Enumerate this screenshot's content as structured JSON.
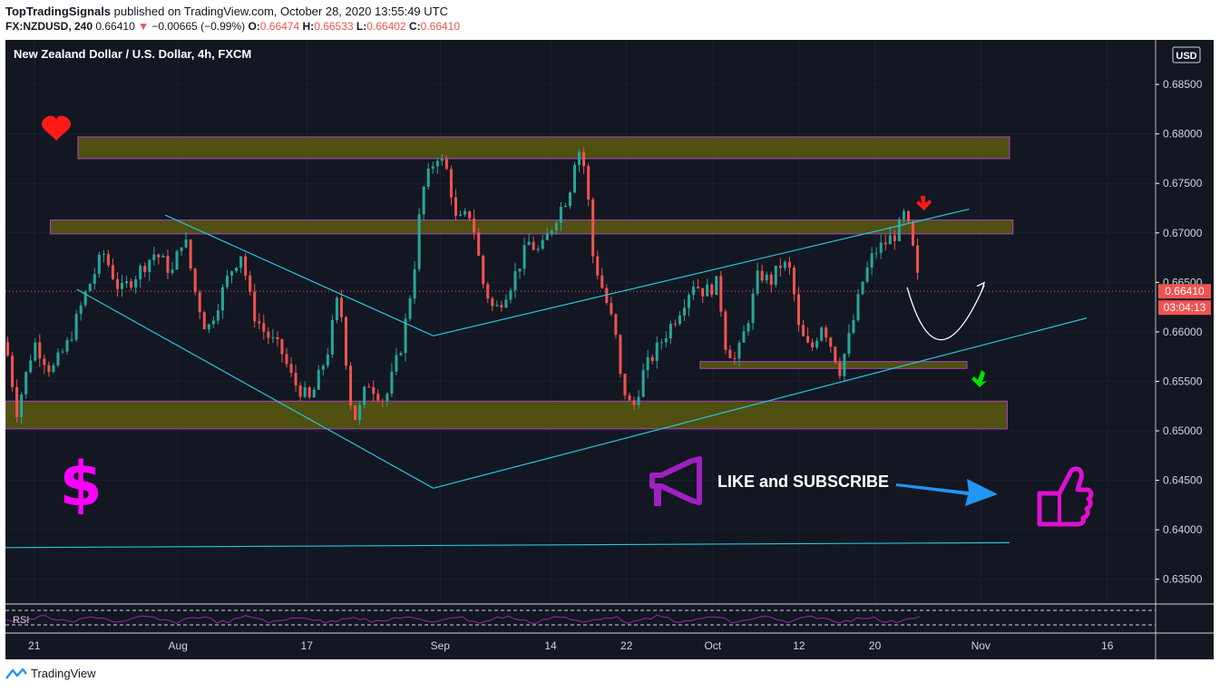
{
  "header": {
    "author": "TopTradingSignals",
    "published_text": "published on TradingView.com, October 28, 2020 13:55:49 UTC",
    "symbol": "FX:NZDUSD, 240",
    "last": "0.66410",
    "change_arrow": "▼",
    "change": "−0.00665 (−0.99%)",
    "o_label": "O:",
    "o_value": "0.66474",
    "h_label": "H:",
    "h_value": "0.66533",
    "l_label": "L:",
    "l_value": "0.66402",
    "c_label": "C:",
    "c_value": "0.66410"
  },
  "chart_data": {
    "type": "candlestick",
    "title": "New Zealand Dollar / U.S. Dollar, 4h, FXCM",
    "currency": "USD",
    "ylim": [
      0.6325,
      0.6895
    ],
    "y_ticks": [
      0.685,
      0.68,
      0.675,
      0.67,
      0.665,
      0.66,
      0.655,
      0.65,
      0.645,
      0.64,
      0.635
    ],
    "y_tick_labels": [
      "0.68500",
      "0.68000",
      "0.67500",
      "0.67000",
      "0.66500",
      "0.66000",
      "0.65500",
      "0.65000",
      "0.64500",
      "0.64000",
      "0.63500"
    ],
    "x_ticks": [
      {
        "label": "21",
        "t": 0.025
      },
      {
        "label": "Aug",
        "t": 0.15
      },
      {
        "label": "17",
        "t": 0.262
      },
      {
        "label": "Sep",
        "t": 0.378
      },
      {
        "label": "14",
        "t": 0.474
      },
      {
        "label": "22",
        "t": 0.54
      },
      {
        "label": "Oct",
        "t": 0.615
      },
      {
        "label": "12",
        "t": 0.69
      },
      {
        "label": "20",
        "t": 0.756
      },
      {
        "label": "Nov",
        "t": 0.848
      },
      {
        "label": "16",
        "t": 0.958
      }
    ],
    "last_price": {
      "value": 0.6641,
      "label": "0.66410",
      "countdown": "03:04:13",
      "color": "#ef5350"
    },
    "price_path": [
      [
        0.0,
        0.659
      ],
      [
        0.01,
        0.652
      ],
      [
        0.025,
        0.659
      ],
      [
        0.04,
        0.656
      ],
      [
        0.055,
        0.659
      ],
      [
        0.07,
        0.664
      ],
      [
        0.085,
        0.668
      ],
      [
        0.1,
        0.664
      ],
      [
        0.115,
        0.666
      ],
      [
        0.13,
        0.668
      ],
      [
        0.145,
        0.666
      ],
      [
        0.155,
        0.67
      ],
      [
        0.165,
        0.664
      ],
      [
        0.175,
        0.66
      ],
      [
        0.185,
        0.663
      ],
      [
        0.195,
        0.666
      ],
      [
        0.205,
        0.668
      ],
      [
        0.215,
        0.662
      ],
      [
        0.225,
        0.66
      ],
      [
        0.24,
        0.658
      ],
      [
        0.25,
        0.655
      ],
      [
        0.265,
        0.653
      ],
      [
        0.28,
        0.658
      ],
      [
        0.29,
        0.664
      ],
      [
        0.3,
        0.653
      ],
      [
        0.305,
        0.651
      ],
      [
        0.315,
        0.655
      ],
      [
        0.33,
        0.653
      ],
      [
        0.345,
        0.659
      ],
      [
        0.355,
        0.666
      ],
      [
        0.362,
        0.674
      ],
      [
        0.375,
        0.678
      ],
      [
        0.385,
        0.676
      ],
      [
        0.392,
        0.671
      ],
      [
        0.405,
        0.672
      ],
      [
        0.415,
        0.665
      ],
      [
        0.425,
        0.662
      ],
      [
        0.44,
        0.665
      ],
      [
        0.455,
        0.669
      ],
      [
        0.465,
        0.668
      ],
      [
        0.48,
        0.672
      ],
      [
        0.49,
        0.674
      ],
      [
        0.497,
        0.679
      ],
      [
        0.505,
        0.676
      ],
      [
        0.51,
        0.668
      ],
      [
        0.52,
        0.664
      ],
      [
        0.53,
        0.66
      ],
      [
        0.535,
        0.655
      ],
      [
        0.545,
        0.652
      ],
      [
        0.555,
        0.656
      ],
      [
        0.57,
        0.659
      ],
      [
        0.585,
        0.662
      ],
      [
        0.598,
        0.665
      ],
      [
        0.608,
        0.664
      ],
      [
        0.62,
        0.665
      ],
      [
        0.625,
        0.659
      ],
      [
        0.635,
        0.657
      ],
      [
        0.645,
        0.661
      ],
      [
        0.655,
        0.666
      ],
      [
        0.665,
        0.665
      ],
      [
        0.675,
        0.667
      ],
      [
        0.683,
        0.666
      ],
      [
        0.69,
        0.66
      ],
      [
        0.7,
        0.658
      ],
      [
        0.71,
        0.661
      ],
      [
        0.72,
        0.658
      ],
      [
        0.725,
        0.656
      ],
      [
        0.735,
        0.66
      ],
      [
        0.745,
        0.665
      ],
      [
        0.755,
        0.668
      ],
      [
        0.765,
        0.669
      ],
      [
        0.775,
        0.67
      ],
      [
        0.782,
        0.672
      ],
      [
        0.788,
        0.669
      ],
      [
        0.795,
        0.664
      ]
    ],
    "zones": [
      {
        "t1": 0.063,
        "t2": 0.873,
        "lo": 0.6775,
        "hi": 0.6797
      },
      {
        "t1": 0.039,
        "t2": 0.876,
        "lo": 0.6699,
        "hi": 0.6713
      },
      {
        "t1": 0.604,
        "t2": 0.836,
        "lo": 0.6563,
        "hi": 0.657
      },
      {
        "t1": 0.0,
        "t2": 0.871,
        "lo": 0.6502,
        "hi": 0.653
      }
    ],
    "zone_color": "#5a5a0f",
    "zone_border": "#b040c0",
    "lines": [
      {
        "t1": 0.139,
        "p1": 0.6718,
        "t2": 0.372,
        "p2": 0.6596
      },
      {
        "t1": 0.372,
        "p1": 0.6596,
        "t2": 0.838,
        "p2": 0.6724
      },
      {
        "t1": 0.062,
        "p1": 0.6643,
        "t2": 0.372,
        "p2": 0.6442
      },
      {
        "t1": 0.372,
        "p1": 0.6442,
        "t2": 0.94,
        "p2": 0.6614
      },
      {
        "t1": 0.0,
        "p1": 0.6382,
        "t2": 0.873,
        "p2": 0.6387
      }
    ],
    "trend_color": "#26c6da",
    "projection": {
      "start": [
        0.784,
        0.6645
      ],
      "control": [
        0.81,
        0.6538
      ],
      "end": [
        0.851,
        0.6647
      ],
      "color": "#ffffff"
    },
    "rsi": {
      "label": "RSI",
      "upper": 70,
      "lower": 30,
      "color": "#9c27b0"
    },
    "annotations": {
      "like_text": "LIKE and SUBSCRIBE",
      "dollar": "$",
      "dollar_color": "#ff00ff",
      "heart_color": "#ff1a1a",
      "megaphone_color": "#a020c0",
      "thumb_color": "#e010d0",
      "arrow_color": "#2196f3",
      "down_arrow_color": "#ff1a1a",
      "up_arrow_color": "#00e000"
    }
  },
  "footer": {
    "brand": "TradingView"
  }
}
